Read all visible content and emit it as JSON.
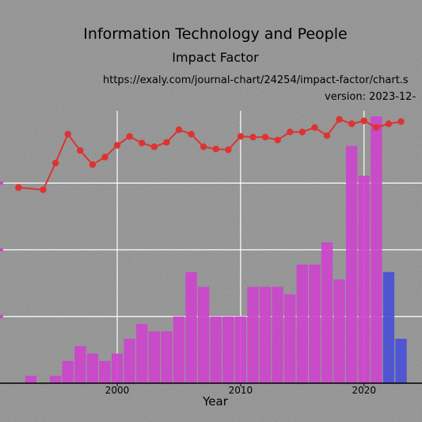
{
  "chart_data": {
    "type": "bar",
    "title": "Information Technology and People",
    "subtitle": "Impact Factor",
    "source_url": "https://exaly.com/journal-chart/24254/impact-factor/chart.s",
    "version": "version: 2023-12-",
    "xlabel": "Year",
    "ylabel": "",
    "x_ticks": [
      2000,
      2010,
      2020
    ],
    "xlim": [
      1990.5,
      2024.7
    ],
    "bar_ylim": [
      0,
      36
    ],
    "line_ylim": [
      0,
      36
    ],
    "grid": true,
    "series": [
      {
        "name": "",
        "kind": "bar",
        "color": "#cc44cc",
        "x": [
          1993,
          1995,
          1996,
          1997,
          1998,
          1999,
          2000,
          2001,
          2002,
          2003,
          2004,
          2005,
          2006,
          2007,
          2008,
          2009,
          2010,
          2011,
          2012,
          2013,
          2014,
          2015,
          2016,
          2017,
          2018,
          2019,
          2020,
          2021
        ],
        "values": [
          1,
          1,
          3,
          5,
          4,
          3,
          4,
          6,
          8,
          7,
          7,
          9,
          15,
          13,
          9,
          9,
          9,
          13,
          13,
          13,
          12,
          16,
          16,
          19,
          14,
          32,
          28,
          36
        ]
      },
      {
        "name": "",
        "kind": "bar",
        "color": "#4a4fd6",
        "x": [
          2022,
          2023
        ],
        "values": [
          15,
          6
        ]
      },
      {
        "name": "",
        "kind": "line",
        "color": "#dd3333",
        "x": [
          1992,
          1994,
          1995,
          1996,
          1997,
          1998,
          1999,
          2000,
          2001,
          2002,
          2003,
          2004,
          2005,
          2006,
          2007,
          2008,
          2009,
          2010,
          2011,
          2012,
          2013,
          2014,
          2015,
          2016,
          2017,
          2018,
          2019,
          2020,
          2021,
          2022,
          2023
        ],
        "values": [
          26.4,
          26.1,
          29.7,
          33.6,
          31.4,
          29.5,
          30.5,
          32.1,
          33.3,
          32.4,
          31.9,
          32.5,
          34.2,
          33.6,
          31.9,
          31.6,
          31.5,
          33.3,
          33.2,
          33.2,
          32.8,
          33.9,
          33.9,
          34.5,
          33.4,
          35.6,
          35.0,
          35.4,
          34.5,
          35.0,
          35.3
        ]
      }
    ]
  },
  "colors": {
    "background": "#8f8f8f",
    "grid": "#ffffff",
    "axis": "#000000",
    "left_ticks": "#cc44cc"
  }
}
